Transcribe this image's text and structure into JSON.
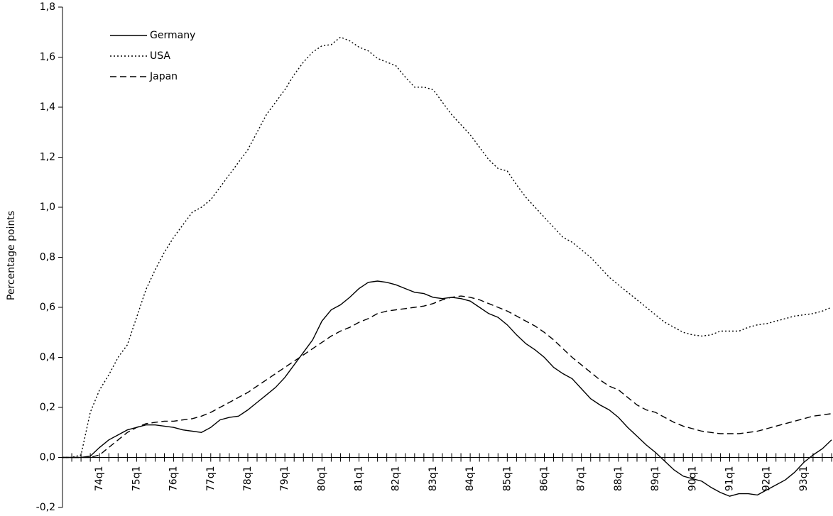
{
  "chart_data": {
    "type": "line",
    "ylabel": "Percentage points",
    "categories": [
      null,
      null,
      null,
      null,
      "74q1",
      null,
      null,
      null,
      "75q1",
      null,
      null,
      null,
      "76q1",
      null,
      null,
      null,
      "77q1",
      null,
      null,
      null,
      "78q1",
      null,
      null,
      null,
      "79q1",
      null,
      null,
      null,
      "80q1",
      null,
      null,
      null,
      "81q1",
      null,
      null,
      null,
      "82q1",
      null,
      null,
      null,
      "83q1",
      null,
      null,
      null,
      "84q1",
      null,
      null,
      null,
      "85q1",
      null,
      null,
      null,
      "86q1",
      null,
      null,
      null,
      "87q1",
      null,
      null,
      null,
      "88q1",
      null,
      null,
      null,
      "89q1",
      null,
      null,
      null,
      "90q1",
      null,
      null,
      null,
      "91q1",
      null,
      null,
      null,
      "92q1",
      null,
      null,
      null,
      "93q1",
      null,
      null,
      null
    ],
    "series": [
      {
        "name": "Germany",
        "color": "#000000",
        "dash": "solid",
        "values": [
          0,
          0,
          0,
          0.005,
          0.04,
          0.07,
          0.09,
          0.11,
          0.12,
          0.13,
          0.13,
          0.125,
          0.12,
          0.11,
          0.105,
          0.1,
          0.12,
          0.15,
          0.16,
          0.165,
          0.19,
          0.22,
          0.25,
          0.28,
          0.32,
          0.37,
          0.42,
          0.47,
          0.545,
          0.59,
          0.61,
          0.64,
          0.675,
          0.7,
          0.705,
          0.7,
          0.69,
          0.675,
          0.66,
          0.655,
          0.64,
          0.635,
          0.64,
          0.635,
          0.625,
          0.6,
          0.575,
          0.56,
          0.53,
          0.49,
          0.455,
          0.43,
          0.4,
          0.36,
          0.335,
          0.315,
          0.275,
          0.235,
          0.21,
          0.19,
          0.16,
          0.12,
          0.085,
          0.05,
          0.02,
          -0.015,
          -0.05,
          -0.075,
          -0.085,
          -0.095,
          -0.12,
          -0.14,
          -0.155,
          -0.145,
          -0.145,
          -0.15,
          -0.13,
          -0.11,
          -0.09,
          -0.06,
          -0.02,
          0.01,
          0.035,
          0.07
        ]
      },
      {
        "name": "USA",
        "color": "#000000",
        "dash": "dotted",
        "values": [
          0,
          0,
          0.01,
          0.18,
          0.27,
          0.33,
          0.4,
          0.45,
          0.56,
          0.67,
          0.75,
          0.82,
          0.88,
          0.93,
          0.98,
          1.0,
          1.03,
          1.08,
          1.13,
          1.18,
          1.23,
          1.3,
          1.37,
          1.42,
          1.47,
          1.53,
          1.58,
          1.62,
          1.645,
          1.65,
          1.68,
          1.665,
          1.64,
          1.625,
          1.595,
          1.58,
          1.565,
          1.52,
          1.48,
          1.48,
          1.47,
          1.42,
          1.37,
          1.33,
          1.29,
          1.24,
          1.19,
          1.155,
          1.145,
          1.09,
          1.04,
          1.0,
          0.96,
          0.92,
          0.88,
          0.86,
          0.83,
          0.8,
          0.76,
          0.72,
          0.69,
          0.66,
          0.63,
          0.6,
          0.57,
          0.54,
          0.52,
          0.5,
          0.49,
          0.485,
          0.49,
          0.505,
          0.505,
          0.505,
          0.52,
          0.53,
          0.535,
          0.545,
          0.555,
          0.565,
          0.57,
          0.575,
          0.585,
          0.6
        ]
      },
      {
        "name": "Japan",
        "color": "#000000",
        "dash": "dashed",
        "values": [
          0,
          0,
          0,
          0,
          0.01,
          0.04,
          0.07,
          0.1,
          0.12,
          0.135,
          0.14,
          0.145,
          0.145,
          0.15,
          0.155,
          0.165,
          0.18,
          0.2,
          0.22,
          0.24,
          0.26,
          0.285,
          0.31,
          0.335,
          0.36,
          0.385,
          0.41,
          0.435,
          0.46,
          0.485,
          0.505,
          0.52,
          0.54,
          0.555,
          0.575,
          0.585,
          0.59,
          0.595,
          0.6,
          0.605,
          0.615,
          0.63,
          0.64,
          0.645,
          0.64,
          0.63,
          0.615,
          0.6,
          0.585,
          0.565,
          0.545,
          0.525,
          0.5,
          0.47,
          0.435,
          0.4,
          0.37,
          0.34,
          0.31,
          0.285,
          0.27,
          0.24,
          0.21,
          0.19,
          0.18,
          0.16,
          0.14,
          0.125,
          0.115,
          0.105,
          0.1,
          0.095,
          0.095,
          0.095,
          0.1,
          0.105,
          0.115,
          0.125,
          0.135,
          0.145,
          0.155,
          0.165,
          0.17,
          0.175
        ]
      }
    ],
    "ylim": [
      -0.2,
      1.8
    ],
    "yticks": [
      {
        "value": -0.2,
        "label": "-0,2"
      },
      {
        "value": 0,
        "label": "0,0"
      },
      {
        "value": 0.2,
        "label": "0,2"
      },
      {
        "value": 0.4,
        "label": "0,4"
      },
      {
        "value": 0.6,
        "label": "0,6"
      },
      {
        "value": 0.8,
        "label": "0,8"
      },
      {
        "value": 1.0,
        "label": "1,0"
      },
      {
        "value": 1.2,
        "label": "1,2"
      },
      {
        "value": 1.4,
        "label": "1,4"
      },
      {
        "value": 1.6,
        "label": "1,6"
      },
      {
        "value": 1.8,
        "label": "1,8"
      }
    ],
    "grid": false,
    "legend": "upper left"
  }
}
